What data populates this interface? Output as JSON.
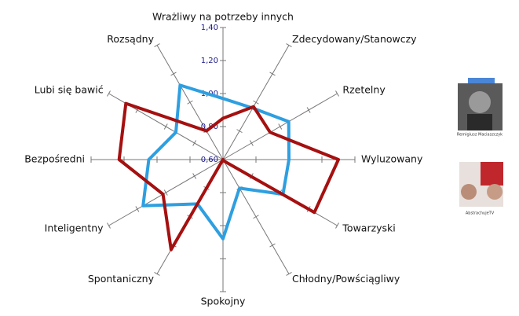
{
  "chart_data": {
    "type": "radar",
    "categories": [
      "Wrażliwy na potrzeby innych",
      "Zdecydowany/Stanowczy",
      "Rzetelny",
      "Wyluzowany",
      "Towarzyski",
      "Chłodny/Powściągliwy",
      "Spokojny",
      "Spontaniczny",
      "Inteligentny",
      "Bezpośredni",
      "Lubi się bawić",
      "Rozsądny"
    ],
    "series": [
      {
        "color": "#2e9fe0",
        "values": [
          0.97,
          0.96,
          1.06,
          1.0,
          1.02,
          0.8,
          1.08,
          0.91,
          1.16,
          1.05,
          0.93,
          1.12
        ]
      },
      {
        "color": "#a51010",
        "values": [
          0.85,
          0.97,
          0.93,
          1.3,
          1.24,
          0.61,
          0.6,
          1.23,
          1.02,
          1.23,
          1.28,
          0.8
        ]
      }
    ],
    "ylim": [
      0.6,
      1.4
    ],
    "yticks": [
      {
        "value": 0.6,
        "label": "0,60"
      },
      {
        "value": 0.8,
        "label": "0,80"
      },
      {
        "value": 1.0,
        "label": "1,00"
      },
      {
        "value": 1.2,
        "label": "1,20"
      },
      {
        "value": 1.4,
        "label": "1,40"
      }
    ]
  },
  "sidebar": {
    "captions": [
      "Remigiusz Maciaszczyk",
      "AbstrachujeTV"
    ]
  }
}
